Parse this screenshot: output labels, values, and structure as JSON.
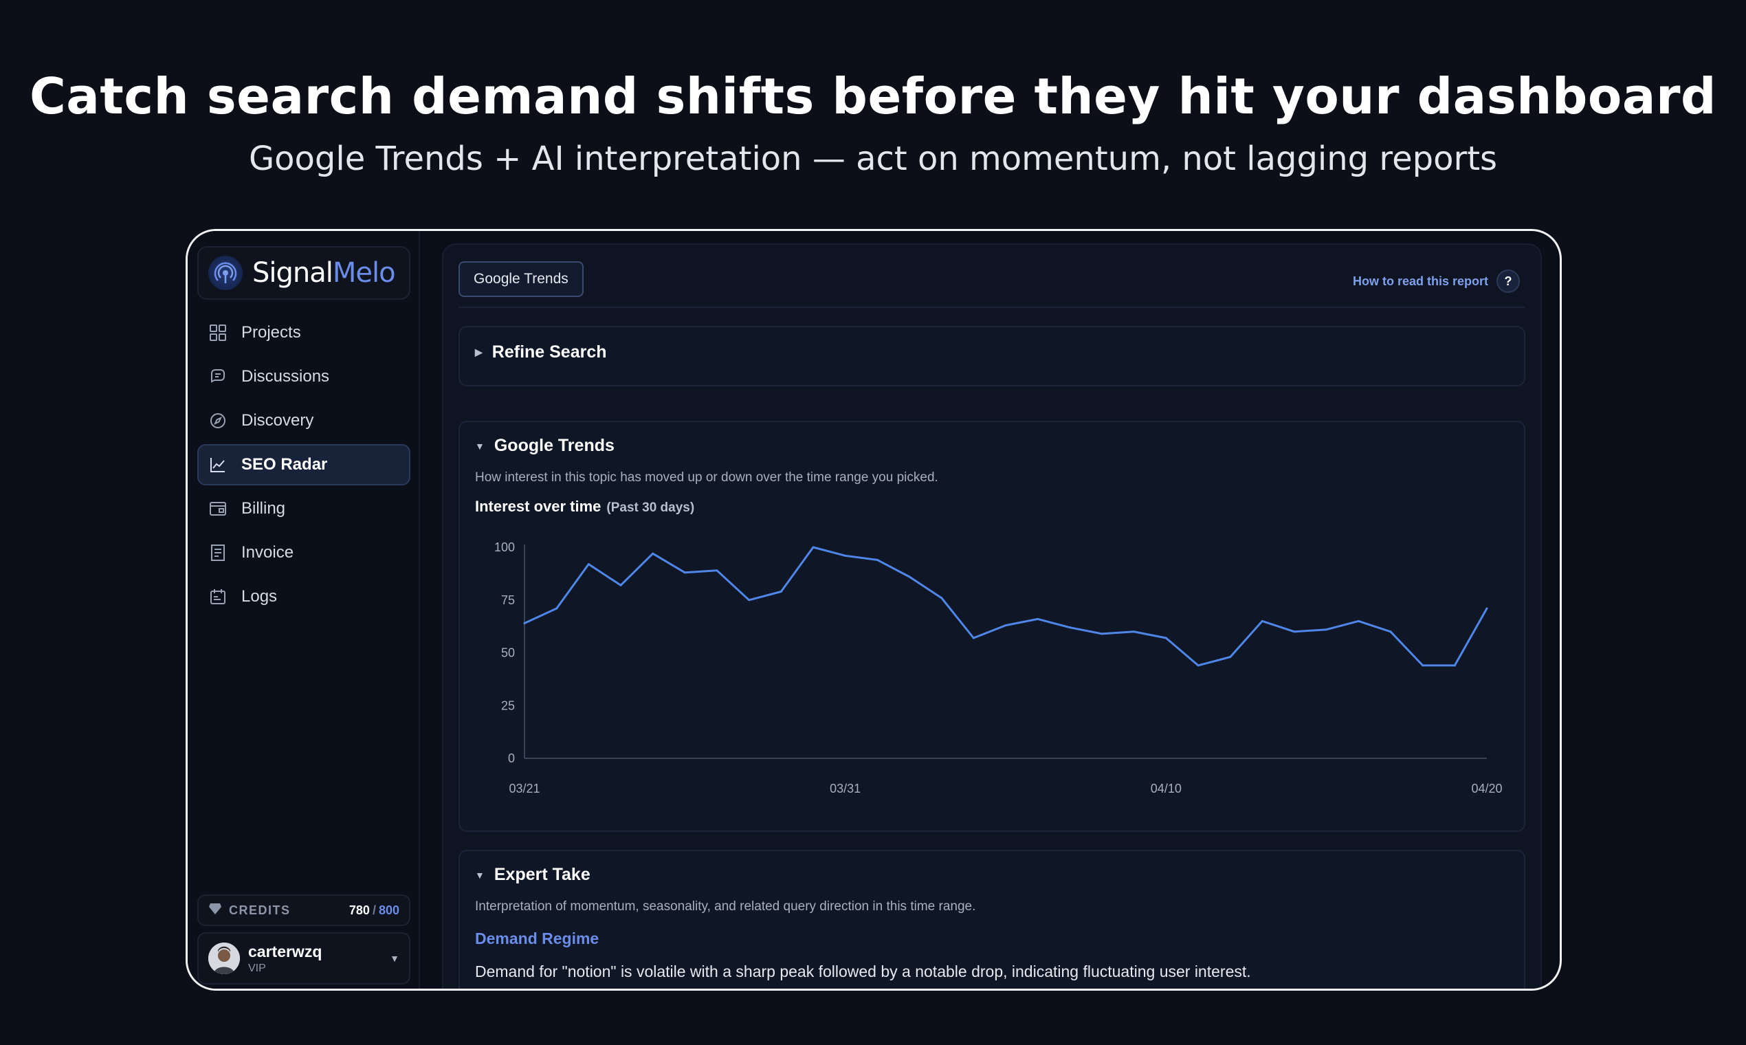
{
  "hero": {
    "title": "Catch search demand shifts before they hit your dashboard",
    "subtitle": "Google Trends + AI interpretation — act on momentum, not lagging reports"
  },
  "brand": {
    "name_part1": "Signal",
    "name_part2": "Melo",
    "accent": "#6b8de9"
  },
  "sidebar": {
    "items": [
      {
        "label": "Projects",
        "icon": "grid-icon"
      },
      {
        "label": "Discussions",
        "icon": "chat-icon"
      },
      {
        "label": "Discovery",
        "icon": "compass-icon"
      },
      {
        "label": "SEO Radar",
        "icon": "chart-line-icon",
        "active": true
      },
      {
        "label": "Billing",
        "icon": "wallet-icon"
      },
      {
        "label": "Invoice",
        "icon": "receipt-icon"
      },
      {
        "label": "Logs",
        "icon": "calendar-icon"
      }
    ],
    "credits": {
      "label": "CREDITS",
      "used": "780",
      "total": "800"
    },
    "user": {
      "name": "carterwzq",
      "role": "VIP"
    }
  },
  "main": {
    "tab_label": "Google Trends",
    "help_label": "How to read this report",
    "help_icon": "?",
    "refine": {
      "title": "Refine Search"
    },
    "trends": {
      "title": "Google Trends",
      "description": "How interest in this topic has moved up or down over the time range you picked.",
      "chart_title": "Interest over time",
      "chart_subtitle": "(Past 30 days)"
    },
    "expert": {
      "title": "Expert Take",
      "description": "Interpretation of momentum, seasonality, and related query direction in this time range.",
      "regime_label": "Demand Regime",
      "text": "Demand for \"notion\" is volatile with a sharp peak followed by a notable drop, indicating fluctuating user interest."
    }
  },
  "chart_data": {
    "type": "line",
    "title": "Interest over time",
    "subtitle": "(Past 30 days)",
    "x": [
      "03/21",
      "03/22",
      "03/23",
      "03/24",
      "03/25",
      "03/26",
      "03/27",
      "03/28",
      "03/29",
      "03/30",
      "03/31",
      "04/01",
      "04/02",
      "04/03",
      "04/04",
      "04/05",
      "04/06",
      "04/07",
      "04/08",
      "04/09",
      "04/10",
      "04/11",
      "04/12",
      "04/13",
      "04/14",
      "04/15",
      "04/16",
      "04/17",
      "04/18",
      "04/19",
      "04/20"
    ],
    "x_ticks": [
      "03/21",
      "03/31",
      "04/10",
      "04/20"
    ],
    "series": [
      {
        "values": [
          64,
          71,
          92,
          82,
          97,
          88,
          89,
          75,
          79,
          100,
          96,
          94,
          86,
          76,
          57,
          63,
          66,
          62,
          59,
          60,
          57,
          44,
          48,
          65,
          60,
          61,
          65,
          60,
          44,
          44,
          71
        ],
        "color": "#4f86e8"
      }
    ],
    "ylim": [
      0,
      100
    ],
    "y_ticks": [
      0,
      25,
      50,
      75,
      100
    ],
    "grid": false
  }
}
